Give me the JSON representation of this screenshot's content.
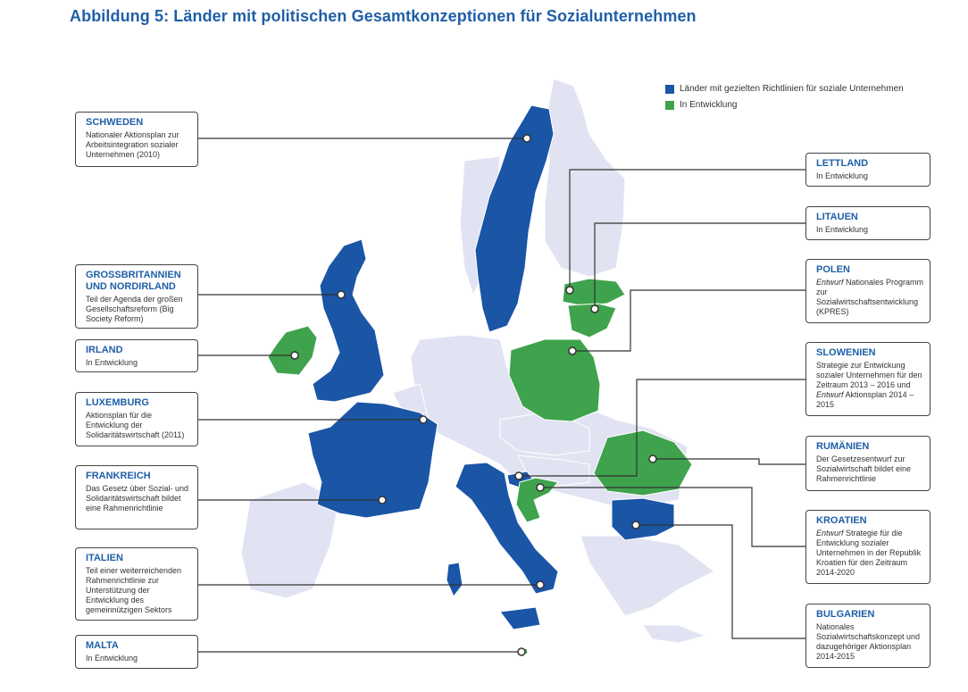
{
  "title": "Abbildung 5: Länder mit politischen Gesamtkonzeptionen für Sozialunternehmen",
  "colors": {
    "policy": "#1a55a6",
    "developing": "#3fa34d",
    "other": "#e1e3f2",
    "accent": "#1f5fa8"
  },
  "legend": {
    "policy": "Länder mit gezielten Richtlinien für soziale Unternehmen",
    "developing": "In Entwicklung"
  },
  "countries": {
    "schweden": {
      "name": "SCHWEDEN",
      "desc": "Nationaler Aktionsplan zur Arbeitsintegration sozialer Unternehmen (2010)",
      "status": "policy"
    },
    "gb": {
      "name": "GROSSBRITANNIEN UND NORDIRLAND",
      "desc": "Teil der Agenda der großen Gesellschaftsreform (Big Society Reform)",
      "status": "policy"
    },
    "irland": {
      "name": "IRLAND",
      "desc": "In Entwicklung",
      "status": "developing"
    },
    "luxemburg": {
      "name": "LUXEMBURG",
      "desc": "Aktionsplan für die Entwicklung der Solidaritätswirtschaft (2011)",
      "status": "policy"
    },
    "frankreich": {
      "name": "FRANKREICH",
      "desc": "Das Gesetz über Sozial- und Solidaritätswirtschaft bildet eine Rahmenrichtlinie",
      "status": "policy"
    },
    "italien": {
      "name": "ITALIEN",
      "desc": "Teil einer weiterreichenden Rahmenrichtlinie zur Unterstützung der Entwicklung des gemeinnützigen Sektors",
      "status": "policy"
    },
    "malta": {
      "name": "MALTA",
      "desc": "In Entwicklung",
      "status": "developing"
    },
    "lettland": {
      "name": "LETTLAND",
      "desc": "In Entwicklung",
      "status": "developing"
    },
    "litauen": {
      "name": "LITAUEN",
      "desc": "In Entwicklung",
      "status": "developing"
    },
    "polen": {
      "name": "POLEN",
      "desc_em": "Entwurf",
      "desc": " Nationales Programm zur Sozialwirtschaftsentwicklung (KPRES)",
      "status": "developing"
    },
    "slowenien": {
      "name": "SLOWENIEN",
      "desc": "Strategie zur Entwickung sozialer Unternehmen für den Zeitraum 2013 – 2016 und ",
      "desc_em": "Entwurf",
      "desc2": " Aktionsplan 2014 – 2015",
      "status": "policy"
    },
    "rumaenien": {
      "name": "RUMÄNIEN",
      "desc": "Der Gesetzesentwurf zur Sozialwirtschaft bildet eine Rahmenrichtlinie",
      "status": "developing"
    },
    "kroatien": {
      "name": "KROATIEN",
      "desc_em": "Entwurf",
      "desc": " Strategie für die Entwicklung sozialer Unternehmen in der Republik Kroatien für den Zeitraum 2014-2020",
      "status": "developing"
    },
    "bulgarien": {
      "name": "BULGARIEN",
      "desc": "Nationales Sozialwirtschaftskonzept und dazugehöriger Aktionsplan 2014-2015",
      "status": "policy"
    }
  }
}
